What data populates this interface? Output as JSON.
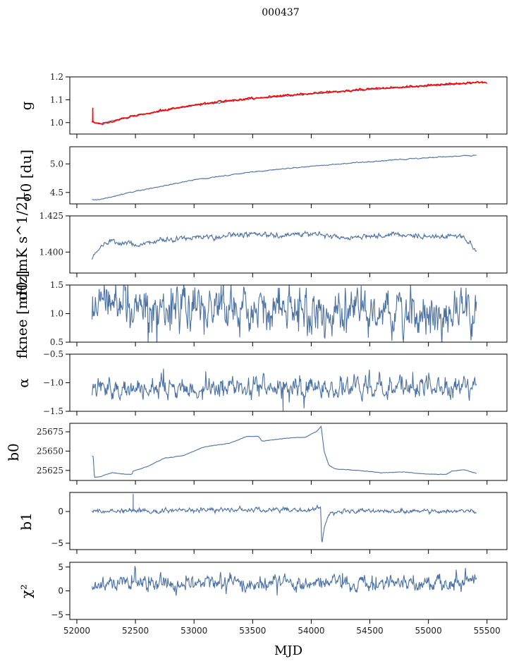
{
  "chart_data": {
    "type": "line",
    "title": "000437",
    "xlabel": "MJD",
    "xlim": [
      51940,
      55670
    ],
    "xticks": [
      52000,
      52500,
      53000,
      53500,
      54000,
      54500,
      55000,
      55500
    ],
    "xtick_labels": [
      "52000",
      "52500",
      "53000",
      "53500",
      "54000",
      "54500",
      "55000",
      "55500"
    ],
    "x_range_data": [
      52130,
      55410
    ],
    "line_color": "#4c72a4",
    "model_color": "#ff0000",
    "grid": false,
    "legend": "none",
    "panels": [
      {
        "id": "gain",
        "ylabel": "g",
        "ylim": [
          0.95,
          1.2
        ],
        "yticks": [
          1.0,
          1.1,
          1.2
        ],
        "ytick_labels": [
          "1.0",
          "1.1",
          "1.2"
        ],
        "series": [
          {
            "name": "gain",
            "color": "#4c72a4",
            "noise": 0.002,
            "anchors": [
              [
                52130,
                1.01
              ],
              [
                52150,
                1.0
              ],
              [
                52200,
                0.995
              ],
              [
                52500,
                1.03
              ],
              [
                53000,
                1.075
              ],
              [
                53500,
                1.105
              ],
              [
                54000,
                1.125
              ],
              [
                54500,
                1.145
              ],
              [
                55000,
                1.16
              ],
              [
                55410,
                1.175
              ]
            ]
          },
          {
            "name": "gain-model",
            "color": "#ff0000",
            "noise": 0.003,
            "spike": [
              52135,
              1.0,
              1.065
            ],
            "anchors": [
              [
                52130,
                1.005
              ],
              [
                52150,
                1.0
              ],
              [
                52200,
                0.993
              ],
              [
                52500,
                1.032
              ],
              [
                53000,
                1.078
              ],
              [
                53500,
                1.108
              ],
              [
                54000,
                1.128
              ],
              [
                54500,
                1.147
              ],
              [
                55000,
                1.163
              ],
              [
                55410,
                1.175
              ],
              [
                55500,
                1.175
              ]
            ]
          }
        ]
      },
      {
        "id": "sigma0-du",
        "ylabel": "σ0 [du]",
        "ylim": [
          4.3,
          5.3
        ],
        "yticks": [
          4.5,
          5.0
        ],
        "ytick_labels": [
          "4.5",
          "5.0"
        ],
        "series": [
          {
            "name": "sigma0-du",
            "color": "#4c72a4",
            "noise": 0.006,
            "anchors": [
              [
                52130,
                4.37
              ],
              [
                52200,
                4.38
              ],
              [
                52500,
                4.52
              ],
              [
                53000,
                4.72
              ],
              [
                53500,
                4.86
              ],
              [
                54000,
                4.96
              ],
              [
                54500,
                5.04
              ],
              [
                55000,
                5.11
              ],
              [
                55410,
                5.15
              ]
            ]
          }
        ]
      },
      {
        "id": "sigma0-mk",
        "ylabel": "σ0 [mK s^1/2]",
        "ylim": [
          1.3855,
          1.425
        ],
        "yticks": [
          1.4,
          1.425
        ],
        "ytick_labels": [
          "1.400",
          "1.425"
        ],
        "series": [
          {
            "name": "sigma0-mk",
            "color": "#4c72a4",
            "noise": 0.0012,
            "anchors": [
              [
                52130,
                1.396
              ],
              [
                52200,
                1.404
              ],
              [
                52300,
                1.407
              ],
              [
                52500,
                1.405
              ],
              [
                52700,
                1.408
              ],
              [
                53000,
                1.41
              ],
              [
                53200,
                1.41
              ],
              [
                53500,
                1.413
              ],
              [
                53700,
                1.411
              ],
              [
                54000,
                1.413
              ],
              [
                54300,
                1.41
              ],
              [
                54500,
                1.411
              ],
              [
                54800,
                1.412
              ],
              [
                55000,
                1.411
              ],
              [
                55300,
                1.411
              ],
              [
                55350,
                1.406
              ],
              [
                55410,
                1.401
              ]
            ]
          }
        ]
      },
      {
        "id": "fknee",
        "ylabel": "fknee [mHz]",
        "ylim": [
          0.5,
          1.5
        ],
        "yticks": [
          0.5,
          1.0,
          1.5
        ],
        "ytick_labels": [
          "0.5",
          "1.0",
          "1.5"
        ],
        "series": [
          {
            "name": "fknee",
            "color": "#4c72a4",
            "noise": 0.18,
            "spiky": true,
            "anchors": [
              [
                52130,
                1.15
              ],
              [
                52500,
                1.1
              ],
              [
                53000,
                1.05
              ],
              [
                53500,
                1.08
              ],
              [
                54000,
                1.05
              ],
              [
                54500,
                1.05
              ],
              [
                55000,
                1.05
              ],
              [
                55410,
                0.98
              ]
            ]
          }
        ]
      },
      {
        "id": "alpha",
        "ylabel": "α",
        "ylim": [
          -1.5,
          -0.5
        ],
        "yticks": [
          -1.5,
          -1.0,
          -0.5
        ],
        "ytick_labels": [
          "−1.5",
          "−1.0",
          "−0.5"
        ],
        "series": [
          {
            "name": "alpha",
            "color": "#4c72a4",
            "noise": 0.08,
            "spiky": true,
            "dip": [
              53760,
              -1.5
            ],
            "anchors": [
              [
                52130,
                -1.1
              ],
              [
                53000,
                -1.08
              ],
              [
                54000,
                -1.09
              ],
              [
                55000,
                -1.07
              ],
              [
                55410,
                -1.06
              ]
            ]
          }
        ]
      },
      {
        "id": "b0",
        "ylabel": "b0",
        "ylim": [
          25612,
          25686
        ],
        "yticks": [
          25625,
          25650,
          25675
        ],
        "ytick_labels": [
          "25625",
          "25650",
          "25675"
        ],
        "series": [
          {
            "name": "b0",
            "color": "#4c72a4",
            "noise": 0.25,
            "anchors": [
              [
                52130,
                25644
              ],
              [
                52140,
                25643
              ],
              [
                52150,
                25616
              ],
              [
                52200,
                25617
              ],
              [
                52300,
                25622
              ],
              [
                52400,
                25620
              ],
              [
                52470,
                25620
              ],
              [
                52480,
                25624
              ],
              [
                52600,
                25630
              ],
              [
                52750,
                25641
              ],
              [
                52900,
                25644
              ],
              [
                53000,
                25650
              ],
              [
                53100,
                25656
              ],
              [
                53300,
                25660
              ],
              [
                53450,
                25669
              ],
              [
                53550,
                25669
              ],
              [
                53580,
                25663
              ],
              [
                53700,
                25665
              ],
              [
                53800,
                25667
              ],
              [
                53950,
                25668
              ],
              [
                54050,
                25676
              ],
              [
                54085,
                25682
              ],
              [
                54110,
                25650
              ],
              [
                54150,
                25632
              ],
              [
                54200,
                25627
              ],
              [
                54400,
                25625
              ],
              [
                54600,
                25622
              ],
              [
                54800,
                25623
              ],
              [
                55000,
                25620
              ],
              [
                55150,
                25620
              ],
              [
                55200,
                25624
              ],
              [
                55300,
                25626
              ],
              [
                55410,
                25621
              ]
            ]
          }
        ]
      },
      {
        "id": "b1",
        "ylabel": "b1",
        "ylim": [
          -6,
          3
        ],
        "yticks": [
          -5,
          0
        ],
        "ytick_labels": [
          "−5",
          "0"
        ],
        "series": [
          {
            "name": "b1",
            "color": "#4c72a4",
            "noise": 0.25,
            "spike": [
              52480,
              0.2,
              2.8
            ],
            "anchors": [
              [
                52130,
                0.0
              ],
              [
                53000,
                0.2
              ],
              [
                54000,
                0.3
              ],
              [
                54080,
                0.6
              ],
              [
                54090,
                -5.2
              ],
              [
                54110,
                -2.5
              ],
              [
                54150,
                -0.5
              ],
              [
                54300,
                0.1
              ],
              [
                55000,
                0.0
              ],
              [
                55410,
                0.0
              ]
            ]
          }
        ]
      },
      {
        "id": "chi2",
        "ylabel": "χ²",
        "ylim": [
          -6,
          6
        ],
        "yticks": [
          -5,
          0,
          5
        ],
        "ytick_labels": [
          "−5",
          "0",
          "5"
        ],
        "series": [
          {
            "name": "chi2",
            "color": "#4c72a4",
            "noise": 0.7,
            "spiky": true,
            "anchors": [
              [
                52130,
                1.2
              ],
              [
                52500,
                1.8
              ],
              [
                53000,
                1.5
              ],
              [
                53500,
                1.8
              ],
              [
                54000,
                1.8
              ],
              [
                54500,
                1.6
              ],
              [
                55000,
                1.7
              ],
              [
                55410,
                2.0
              ]
            ]
          }
        ]
      }
    ]
  }
}
